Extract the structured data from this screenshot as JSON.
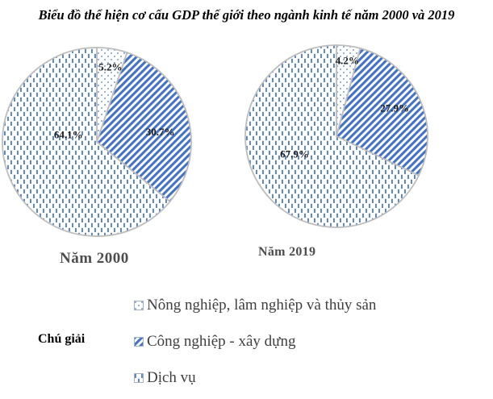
{
  "title": "Biểu đồ thể hiện cơ cấu GDP thế giới theo ngành kinh tế năm 2000 và 2019",
  "legend": {
    "heading": "Chú giải",
    "items": [
      {
        "label": "Nông nghiệp, lâm nghiệp và thủy sản",
        "pattern": "dots"
      },
      {
        "label": "Công nghiệp - xây dựng",
        "pattern": "diagonal-hatch"
      },
      {
        "label": "Dịch vụ",
        "pattern": "vertical-dashes"
      }
    ],
    "position": "bottom"
  },
  "colors": {
    "pattern_blue": "#4472C4",
    "outline_gray": "#BDBDBD",
    "year_label_gray": "#4D4D4D",
    "legend_text_gray": "#3F3F3F",
    "slice_label_color": "#1F1F1F"
  },
  "chart_data": [
    {
      "type": "pie",
      "title": "Năm 2000",
      "categories": [
        "Nông nghiệp, lâm nghiệp và thủy sản",
        "Công nghiệp - xây dựng",
        "Dịch vụ"
      ],
      "values": [
        5.2,
        30.7,
        64.1
      ],
      "labels": [
        "5.2%",
        "30.7%",
        "64.1%"
      ],
      "unit": "%",
      "start_angle_deg": 0,
      "direction": "clockwise"
    },
    {
      "type": "pie",
      "title": "Năm 2019",
      "categories": [
        "Nông nghiệp, lâm nghiệp và thủy sản",
        "Công nghiệp - xây dựng",
        "Dịch vụ"
      ],
      "values": [
        4.2,
        27.9,
        67.9
      ],
      "labels": [
        "4.2%",
        "27.9%",
        "67.9%"
      ],
      "unit": "%",
      "start_angle_deg": 0,
      "direction": "clockwise"
    }
  ]
}
